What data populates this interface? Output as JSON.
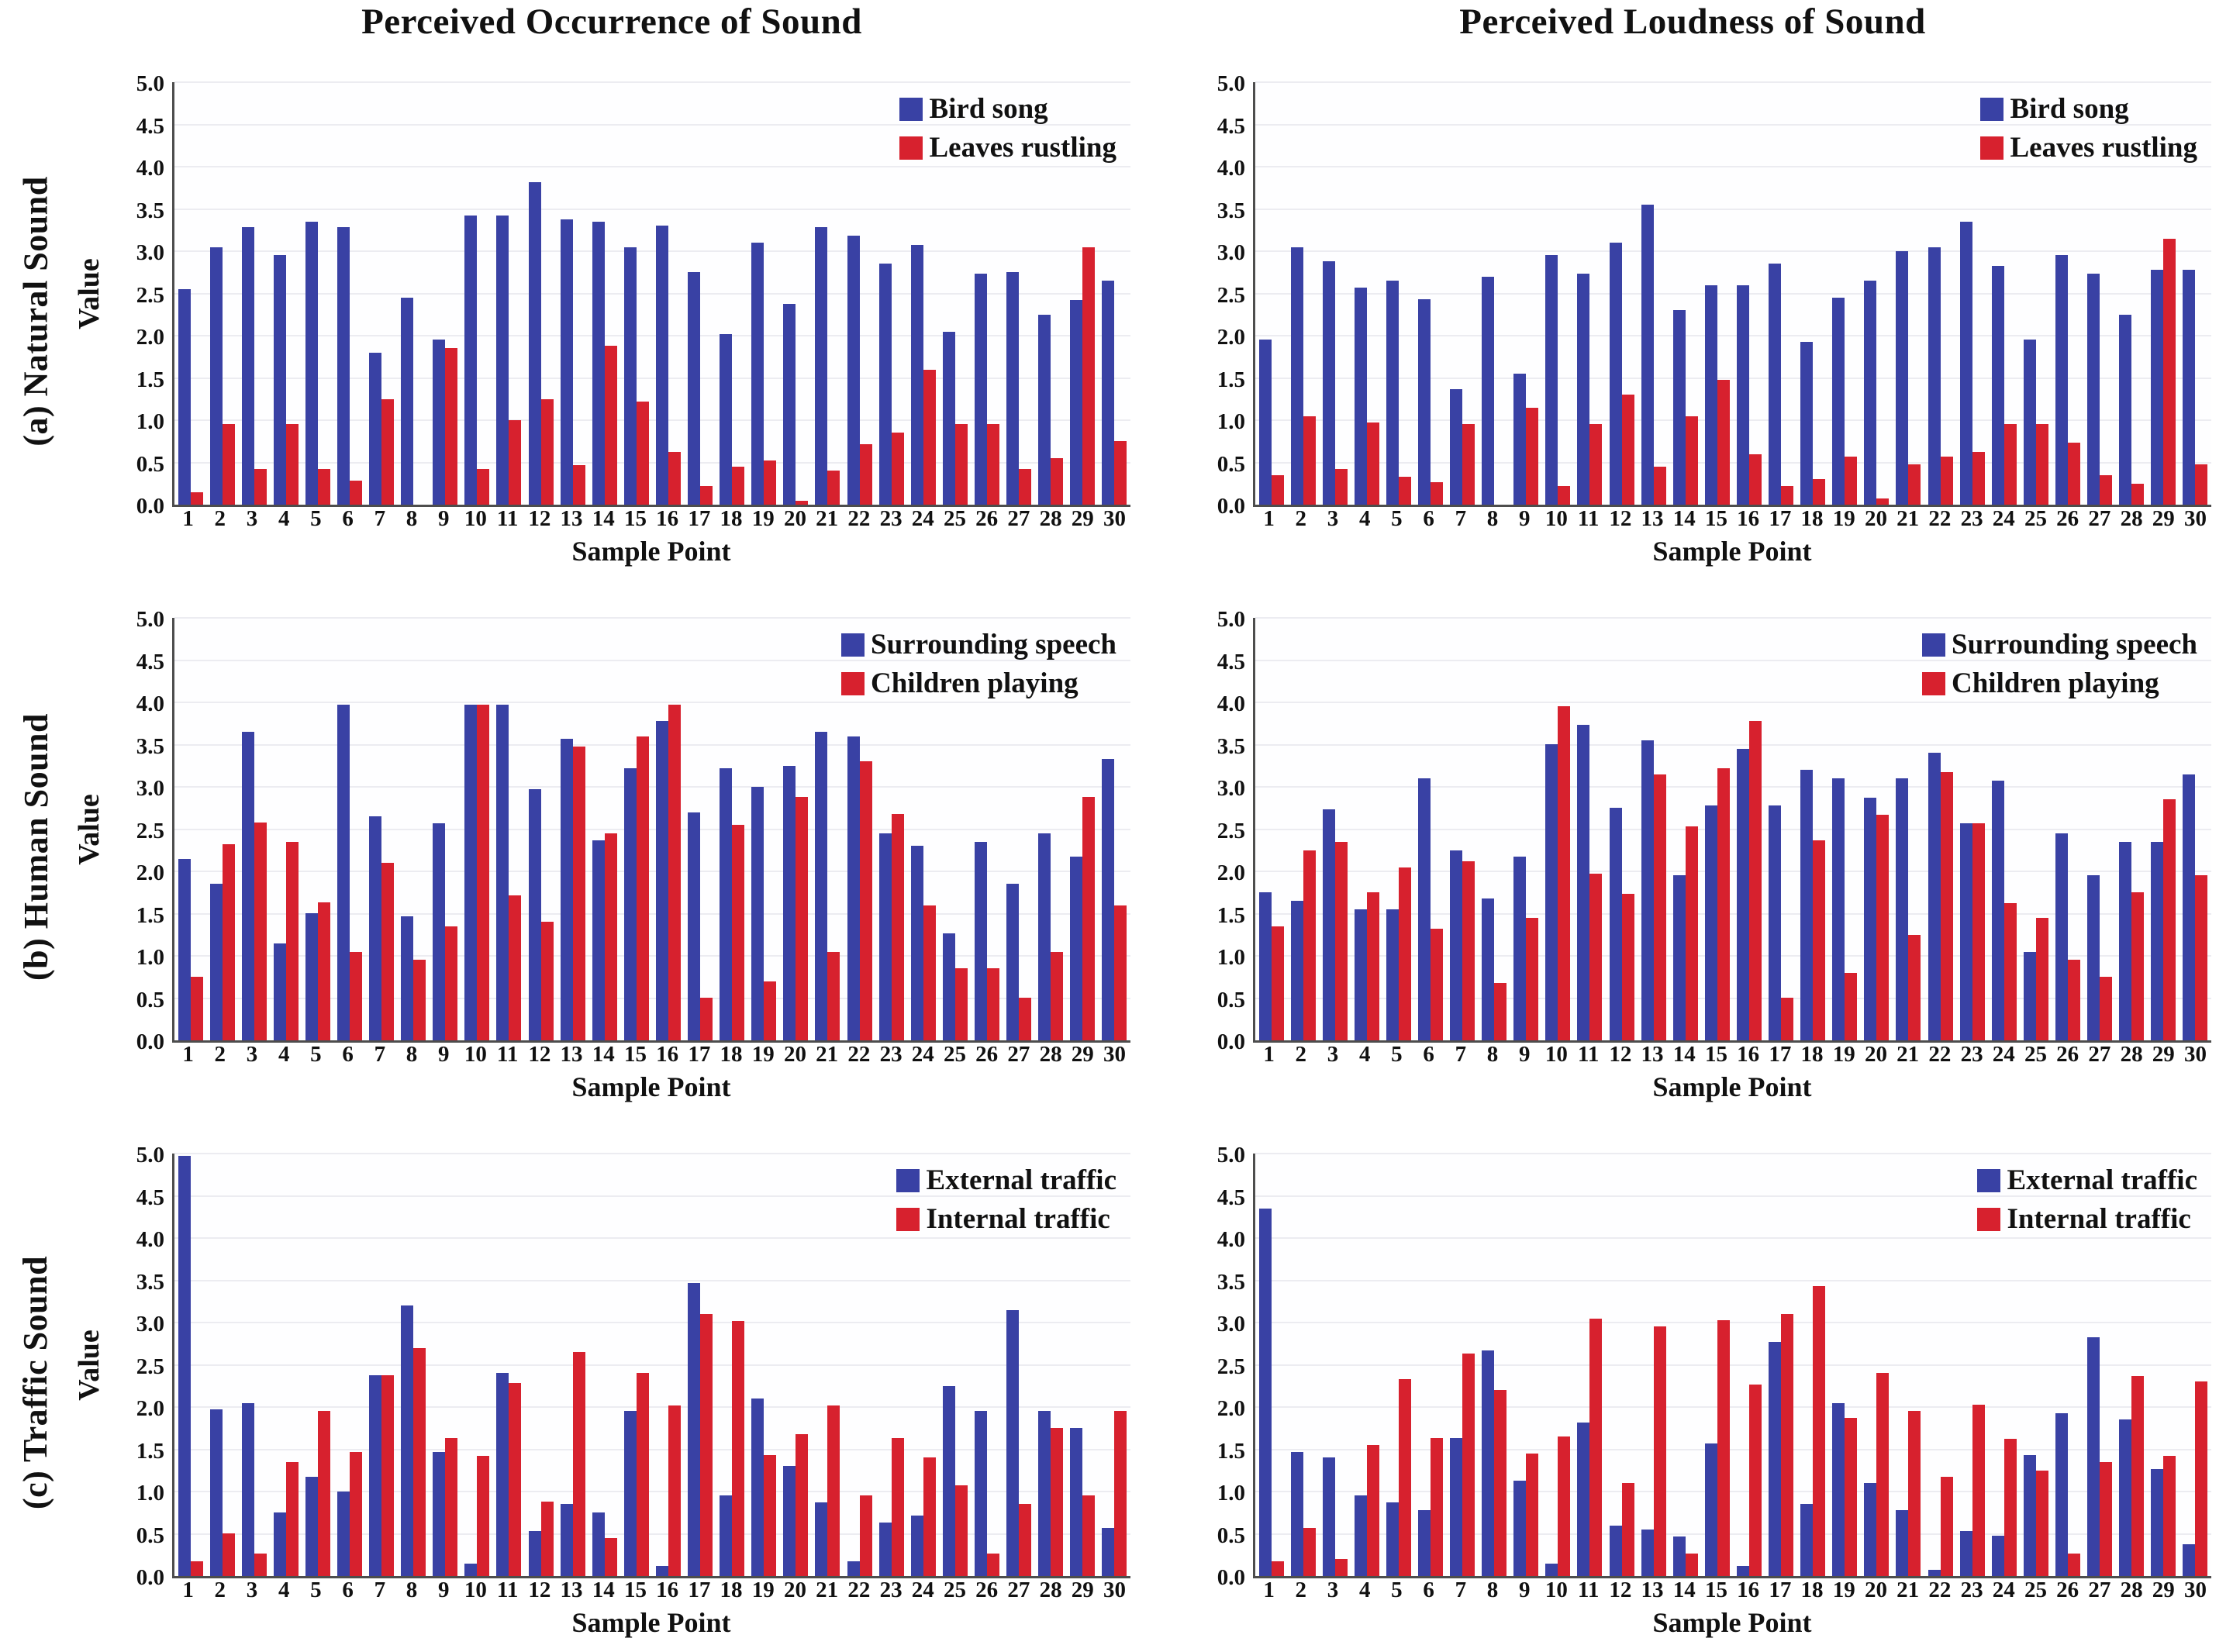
{
  "chart_data": {
    "type": "bar",
    "layout": "3x2 grid of grouped bar charts; grid on; legend top-right inside plot",
    "column_titles": [
      "Perceived Occurrence of Sound",
      "Perceived Loudness of Sound"
    ],
    "row_labels": [
      "(a) Natural Sound",
      "(b) Human Sound",
      "(c) Traffic Sound"
    ],
    "xlabel": "Sample Point",
    "ylabel": "Value",
    "ylim": [
      0,
      5
    ],
    "y_ticks": [
      "5.0",
      "4.5",
      "4.0",
      "3.5",
      "3.0",
      "2.5",
      "2.0",
      "1.5",
      "1.0",
      "0.5",
      "0.0"
    ],
    "categories": [
      "1",
      "2",
      "3",
      "4",
      "5",
      "6",
      "7",
      "8",
      "9",
      "10",
      "11",
      "12",
      "13",
      "14",
      "15",
      "16",
      "17",
      "18",
      "19",
      "20",
      "21",
      "22",
      "23",
      "24",
      "25",
      "26",
      "27",
      "28",
      "29",
      "30"
    ],
    "series_colors": {
      "blue": "#3941a4",
      "red": "#d7212e"
    },
    "charts": [
      {
        "id": "natural-occurrence",
        "row": 0,
        "col": 0,
        "series": [
          {
            "name": "Bird song",
            "color": "blue",
            "values": [
              2.55,
              3.05,
              3.28,
              2.95,
              3.35,
              3.28,
              1.8,
              2.45,
              1.95,
              3.42,
              3.42,
              3.82,
              3.38,
              3.35,
              3.05,
              3.3,
              2.75,
              2.02,
              3.1,
              2.38,
              3.28,
              3.18,
              2.85,
              3.07,
              2.05,
              2.73,
              2.75,
              2.25,
              2.42,
              2.65
            ]
          },
          {
            "name": "Leaves rustling",
            "color": "red",
            "values": [
              0.15,
              0.95,
              0.42,
              0.95,
              0.42,
              0.28,
              1.25,
              0.0,
              1.85,
              0.42,
              1.0,
              1.25,
              0.47,
              1.88,
              1.22,
              0.62,
              0.22,
              0.45,
              0.52,
              0.05,
              0.4,
              0.72,
              0.85,
              1.6,
              0.95,
              0.95,
              0.42,
              0.55,
              3.05,
              0.75
            ]
          }
        ]
      },
      {
        "id": "natural-loudness",
        "row": 0,
        "col": 1,
        "series": [
          {
            "name": "Bird song",
            "color": "blue",
            "values": [
              1.95,
              3.05,
              2.88,
              2.57,
              2.65,
              2.43,
              1.37,
              2.7,
              1.55,
              2.95,
              2.73,
              3.1,
              3.55,
              2.3,
              2.6,
              2.6,
              2.85,
              1.93,
              2.45,
              2.65,
              3.0,
              3.05,
              3.35,
              2.83,
              1.95,
              2.95,
              2.73,
              2.25,
              2.78,
              2.78
            ]
          },
          {
            "name": "Leaves rustling",
            "color": "red",
            "values": [
              0.35,
              1.05,
              0.42,
              0.97,
              0.33,
              0.27,
              0.95,
              0.0,
              1.15,
              0.22,
              0.95,
              1.3,
              0.45,
              1.05,
              1.48,
              0.6,
              0.22,
              0.3,
              0.57,
              0.07,
              0.48,
              0.57,
              0.62,
              0.95,
              0.95,
              0.73,
              0.35,
              0.25,
              3.15,
              0.48
            ]
          }
        ]
      },
      {
        "id": "human-occurrence",
        "row": 1,
        "col": 0,
        "series": [
          {
            "name": "Surrounding speech",
            "color": "blue",
            "values": [
              2.15,
              1.85,
              3.65,
              1.15,
              1.5,
              3.97,
              2.65,
              1.47,
              2.57,
              3.97,
              3.97,
              2.97,
              3.57,
              2.37,
              3.22,
              3.78,
              2.7,
              3.22,
              3.0,
              3.25,
              3.65,
              3.6,
              2.45,
              2.3,
              1.27,
              2.35,
              1.85,
              2.45,
              2.17,
              3.33
            ]
          },
          {
            "name": "Children playing",
            "color": "red",
            "values": [
              0.75,
              2.32,
              2.58,
              2.35,
              1.63,
              1.05,
              2.1,
              0.95,
              1.35,
              3.97,
              1.72,
              1.4,
              3.48,
              2.45,
              3.6,
              3.97,
              0.5,
              2.55,
              0.7,
              2.88,
              1.05,
              3.3,
              2.68,
              1.6,
              0.85,
              0.85,
              0.5,
              1.05,
              2.88,
              1.6
            ]
          }
        ]
      },
      {
        "id": "human-loudness",
        "row": 1,
        "col": 1,
        "series": [
          {
            "name": "Surrounding speech",
            "color": "blue",
            "values": [
              1.75,
              1.65,
              2.73,
              1.55,
              1.55,
              3.1,
              2.25,
              1.68,
              2.17,
              3.5,
              3.73,
              2.75,
              3.55,
              1.95,
              2.78,
              3.45,
              2.78,
              3.2,
              3.1,
              2.87,
              3.1,
              3.4,
              2.57,
              3.07,
              1.05,
              2.45,
              1.95,
              2.35,
              2.35,
              3.15
            ]
          },
          {
            "name": "Children playing",
            "color": "red",
            "values": [
              1.35,
              2.25,
              2.35,
              1.75,
              2.05,
              1.32,
              2.12,
              0.68,
              1.45,
              3.95,
              1.97,
              1.73,
              3.15,
              2.53,
              3.22,
              3.78,
              0.5,
              2.37,
              0.8,
              2.67,
              1.25,
              3.17,
              2.57,
              1.62,
              1.45,
              0.95,
              0.75,
              1.75,
              2.85,
              1.95
            ]
          }
        ]
      },
      {
        "id": "traffic-occurrence",
        "row": 2,
        "col": 0,
        "series": [
          {
            "name": "External traffic",
            "color": "blue",
            "values": [
              4.97,
              1.97,
              2.05,
              0.75,
              1.17,
              1.0,
              2.38,
              3.2,
              1.47,
              0.15,
              2.4,
              0.53,
              0.85,
              0.75,
              1.95,
              0.12,
              3.47,
              0.95,
              2.1,
              1.3,
              0.87,
              0.17,
              0.63,
              0.72,
              2.25,
              1.95,
              3.15,
              1.95,
              1.75,
              0.57
            ]
          },
          {
            "name": "Internal traffic",
            "color": "red",
            "values": [
              0.17,
              0.5,
              0.27,
              1.35,
              1.95,
              1.47,
              2.38,
              2.7,
              1.63,
              1.42,
              2.28,
              0.88,
              2.65,
              0.45,
              2.4,
              2.02,
              3.1,
              3.02,
              1.43,
              1.68,
              2.02,
              0.95,
              1.63,
              1.4,
              1.07,
              0.27,
              0.85,
              1.75,
              0.95,
              1.95
            ]
          }
        ]
      },
      {
        "id": "traffic-loudness",
        "row": 2,
        "col": 1,
        "series": [
          {
            "name": "External traffic",
            "color": "blue",
            "values": [
              4.35,
              1.47,
              1.4,
              0.95,
              0.87,
              0.78,
              1.63,
              2.67,
              1.13,
              0.15,
              1.82,
              0.6,
              0.55,
              0.47,
              1.57,
              0.12,
              2.77,
              0.85,
              2.05,
              1.1,
              0.78,
              0.07,
              0.53,
              0.48,
              1.43,
              1.93,
              2.83,
              1.85,
              1.27,
              0.38
            ]
          },
          {
            "name": "Internal traffic",
            "color": "red",
            "values": [
              0.17,
              0.57,
              0.2,
              1.55,
              2.33,
              1.63,
              2.63,
              2.2,
              1.45,
              1.65,
              3.05,
              1.1,
              2.95,
              0.27,
              3.03,
              2.27,
              3.1,
              3.43,
              1.87,
              2.4,
              1.95,
              1.17,
              2.03,
              1.62,
              1.25,
              0.27,
              1.35,
              2.37,
              1.42,
              2.3
            ]
          }
        ]
      }
    ]
  }
}
